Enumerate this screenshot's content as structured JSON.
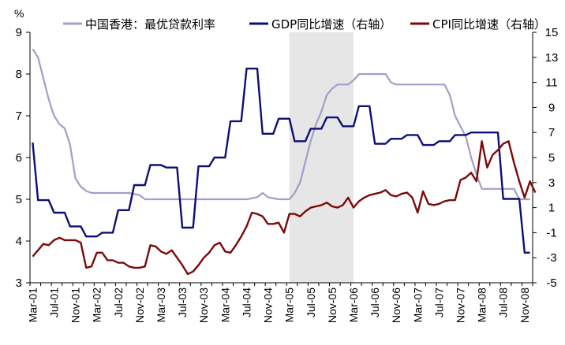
{
  "chart_data": {
    "type": "line",
    "left_unit": "%",
    "left_axis": {
      "min": 3,
      "max": 9,
      "ticks": [
        3,
        4,
        5,
        6,
        7,
        8,
        9
      ]
    },
    "right_axis": {
      "min": -5,
      "max": 15,
      "ticks": [
        -5,
        -3,
        -1,
        1,
        3,
        5,
        7,
        9,
        11,
        13,
        15
      ]
    },
    "x_axis": {
      "start": "Mar-01",
      "end": "Dec-08",
      "tick_labels": [
        "Mar-01",
        "Jul-01",
        "Nov-01",
        "Mar-02",
        "Jul-02",
        "Nov-02",
        "Mar-03",
        "Jul-03",
        "Nov-03",
        "Mar-04",
        "Jul-04",
        "Nov-04",
        "Mar-05",
        "Jul-05",
        "Nov-05",
        "Mar-06",
        "Jul-06",
        "Nov-06",
        "Mar-07",
        "Jul-07",
        "Nov-07",
        "Mar-08",
        "Jul-08",
        "Nov-08"
      ]
    },
    "shaded_region": {
      "from": "Mar-05",
      "to": "Mar-06",
      "color": "#e6e6e6"
    },
    "series": [
      {
        "name": "中国香港：最优贷款利率",
        "axis": "left",
        "color": "#a99bc9",
        "points": [
          [
            "Mar-01",
            8.6
          ],
          [
            "Apr-01",
            8.4
          ],
          [
            "May-01",
            7.9
          ],
          [
            "Jun-01",
            7.4
          ],
          [
            "Jul-01",
            7.0
          ],
          [
            "Aug-01",
            6.8
          ],
          [
            "Sep-01",
            6.7
          ],
          [
            "Oct-01",
            6.3
          ],
          [
            "Nov-01",
            5.5
          ],
          [
            "Dec-01",
            5.3
          ],
          [
            "Jan-02",
            5.2
          ],
          [
            "Feb-02",
            5.15
          ],
          [
            "Mar-02",
            5.15
          ],
          [
            "Jun-02",
            5.15
          ],
          [
            "Sep-02",
            5.15
          ],
          [
            "Nov-02",
            5.1
          ],
          [
            "Dec-02",
            5.0
          ],
          [
            "Mar-03",
            5.0
          ],
          [
            "Jul-03",
            5.0
          ],
          [
            "Nov-03",
            5.0
          ],
          [
            "Mar-04",
            5.0
          ],
          [
            "Jul-04",
            5.0
          ],
          [
            "Sep-04",
            5.05
          ],
          [
            "Oct-04",
            5.15
          ],
          [
            "Nov-04",
            5.05
          ],
          [
            "Jan-05",
            5.0
          ],
          [
            "Mar-05",
            5.0
          ],
          [
            "Apr-05",
            5.15
          ],
          [
            "May-05",
            5.4
          ],
          [
            "Jun-05",
            5.9
          ],
          [
            "Jul-05",
            6.4
          ],
          [
            "Aug-05",
            6.8
          ],
          [
            "Sep-05",
            7.1
          ],
          [
            "Oct-05",
            7.5
          ],
          [
            "Nov-05",
            7.65
          ],
          [
            "Dec-05",
            7.75
          ],
          [
            "Feb-06",
            7.75
          ],
          [
            "Mar-06",
            7.85
          ],
          [
            "Apr-06",
            8.0
          ],
          [
            "Jul-06",
            8.0
          ],
          [
            "Sep-06",
            8.0
          ],
          [
            "Oct-06",
            7.8
          ],
          [
            "Nov-06",
            7.75
          ],
          [
            "Mar-07",
            7.75
          ],
          [
            "Jul-07",
            7.75
          ],
          [
            "Aug-07",
            7.75
          ],
          [
            "Sep-07",
            7.5
          ],
          [
            "Oct-07",
            7.0
          ],
          [
            "Nov-07",
            6.75
          ],
          [
            "Dec-07",
            6.5
          ],
          [
            "Jan-08",
            6.0
          ],
          [
            "Feb-08",
            5.6
          ],
          [
            "Mar-08",
            5.25
          ],
          [
            "Jul-08",
            5.25
          ],
          [
            "Sep-08",
            5.25
          ],
          [
            "Oct-08",
            5.0
          ],
          [
            "Dec-08",
            5.0
          ]
        ]
      },
      {
        "name": "GDP同比增速（右轴）",
        "axis": "right",
        "color": "#0e0e7a",
        "points": [
          [
            "Mar-01",
            6.2
          ],
          [
            "Apr-01",
            1.6
          ],
          [
            "May-01",
            1.6
          ],
          [
            "Jun-01",
            1.6
          ],
          [
            "Jul-01",
            0.6
          ],
          [
            "Aug-01",
            0.6
          ],
          [
            "Sep-01",
            0.6
          ],
          [
            "Oct-01",
            -0.5
          ],
          [
            "Nov-01",
            -0.5
          ],
          [
            "Dec-01",
            -0.5
          ],
          [
            "Jan-02",
            -1.3
          ],
          [
            "Feb-02",
            -1.3
          ],
          [
            "Mar-02",
            -1.3
          ],
          [
            "Apr-02",
            -1.0
          ],
          [
            "May-02",
            -1.0
          ],
          [
            "Jun-02",
            -1.0
          ],
          [
            "Jul-02",
            0.8
          ],
          [
            "Aug-02",
            0.8
          ],
          [
            "Sep-02",
            0.8
          ],
          [
            "Oct-02",
            2.8
          ],
          [
            "Nov-02",
            2.8
          ],
          [
            "Dec-02",
            2.8
          ],
          [
            "Jan-03",
            4.4
          ],
          [
            "Feb-03",
            4.4
          ],
          [
            "Mar-03",
            4.4
          ],
          [
            "Apr-03",
            4.2
          ],
          [
            "May-03",
            4.2
          ],
          [
            "Jun-03",
            4.2
          ],
          [
            "Jul-03",
            -0.6
          ],
          [
            "Aug-03",
            -0.6
          ],
          [
            "Sep-03",
            -0.6
          ],
          [
            "Oct-03",
            4.3
          ],
          [
            "Nov-03",
            4.3
          ],
          [
            "Dec-03",
            4.3
          ],
          [
            "Jan-04",
            5.0
          ],
          [
            "Feb-04",
            5.0
          ],
          [
            "Mar-04",
            5.0
          ],
          [
            "Apr-04",
            7.9
          ],
          [
            "May-04",
            7.9
          ],
          [
            "Jun-04",
            7.9
          ],
          [
            "Jul-04",
            12.1
          ],
          [
            "Aug-04",
            12.1
          ],
          [
            "Sep-04",
            12.1
          ],
          [
            "Oct-04",
            6.9
          ],
          [
            "Nov-04",
            6.9
          ],
          [
            "Dec-04",
            6.9
          ],
          [
            "Jan-05",
            8.1
          ],
          [
            "Feb-05",
            8.1
          ],
          [
            "Mar-05",
            8.1
          ],
          [
            "Apr-05",
            6.3
          ],
          [
            "May-05",
            6.3
          ],
          [
            "Jun-05",
            6.3
          ],
          [
            "Jul-05",
            7.3
          ],
          [
            "Aug-05",
            7.3
          ],
          [
            "Sep-05",
            7.3
          ],
          [
            "Oct-05",
            8.2
          ],
          [
            "Nov-05",
            8.2
          ],
          [
            "Dec-05",
            8.2
          ],
          [
            "Jan-06",
            7.5
          ],
          [
            "Feb-06",
            7.5
          ],
          [
            "Mar-06",
            7.5
          ],
          [
            "Apr-06",
            9.1
          ],
          [
            "May-06",
            9.1
          ],
          [
            "Jun-06",
            9.1
          ],
          [
            "Jul-06",
            6.1
          ],
          [
            "Aug-06",
            6.1
          ],
          [
            "Sep-06",
            6.1
          ],
          [
            "Oct-06",
            6.5
          ],
          [
            "Nov-06",
            6.5
          ],
          [
            "Dec-06",
            6.5
          ],
          [
            "Jan-07",
            6.8
          ],
          [
            "Feb-07",
            6.8
          ],
          [
            "Mar-07",
            6.8
          ],
          [
            "Apr-07",
            6.0
          ],
          [
            "May-07",
            6.0
          ],
          [
            "Jun-07",
            6.0
          ],
          [
            "Jul-07",
            6.3
          ],
          [
            "Aug-07",
            6.3
          ],
          [
            "Sep-07",
            6.3
          ],
          [
            "Oct-07",
            6.8
          ],
          [
            "Nov-07",
            6.8
          ],
          [
            "Dec-07",
            6.8
          ],
          [
            "Jan-08",
            7.0
          ],
          [
            "Feb-08",
            7.0
          ],
          [
            "Mar-08",
            7.0
          ],
          [
            "Apr-08",
            7.0
          ],
          [
            "May-08",
            7.0
          ],
          [
            "Jun-08",
            7.0
          ],
          [
            "Jul-08",
            1.7
          ],
          [
            "Aug-08",
            1.7
          ],
          [
            "Sep-08",
            1.7
          ],
          [
            "Oct-08",
            1.7
          ],
          [
            "Nov-08",
            -2.6
          ],
          [
            "Dec-08",
            -2.6
          ]
        ]
      },
      {
        "name": "CPI同比增速（右轴）",
        "axis": "right",
        "color": "#7a0a0a",
        "points": [
          [
            "Mar-01",
            -2.9
          ],
          [
            "Apr-01",
            -2.4
          ],
          [
            "May-01",
            -1.9
          ],
          [
            "Jun-01",
            -2.0
          ],
          [
            "Jul-01",
            -1.6
          ],
          [
            "Aug-01",
            -1.4
          ],
          [
            "Sep-01",
            -1.6
          ],
          [
            "Oct-01",
            -1.6
          ],
          [
            "Nov-01",
            -1.6
          ],
          [
            "Dec-01",
            -1.8
          ],
          [
            "Jan-02",
            -3.8
          ],
          [
            "Feb-02",
            -3.7
          ],
          [
            "Mar-02",
            -2.6
          ],
          [
            "Apr-02",
            -2.6
          ],
          [
            "May-02",
            -3.2
          ],
          [
            "Jun-02",
            -3.2
          ],
          [
            "Jul-02",
            -3.4
          ],
          [
            "Aug-02",
            -3.4
          ],
          [
            "Sep-02",
            -3.7
          ],
          [
            "Oct-02",
            -3.8
          ],
          [
            "Nov-02",
            -3.8
          ],
          [
            "Dec-02",
            -3.7
          ],
          [
            "Jan-03",
            -2.0
          ],
          [
            "Feb-03",
            -2.1
          ],
          [
            "Mar-03",
            -2.5
          ],
          [
            "Apr-03",
            -2.7
          ],
          [
            "May-03",
            -2.4
          ],
          [
            "Jun-03",
            -3.0
          ],
          [
            "Jul-03",
            -3.6
          ],
          [
            "Aug-03",
            -4.3
          ],
          [
            "Sep-03",
            -4.1
          ],
          [
            "Oct-03",
            -3.6
          ],
          [
            "Nov-03",
            -3.0
          ],
          [
            "Dec-03",
            -2.6
          ],
          [
            "Jan-04",
            -2.0
          ],
          [
            "Feb-04",
            -1.8
          ],
          [
            "Mar-04",
            -2.5
          ],
          [
            "Apr-04",
            -2.6
          ],
          [
            "May-04",
            -2.0
          ],
          [
            "Jun-04",
            -1.3
          ],
          [
            "Jul-04",
            -0.5
          ],
          [
            "Aug-04",
            0.6
          ],
          [
            "Sep-04",
            0.5
          ],
          [
            "Oct-04",
            0.3
          ],
          [
            "Nov-04",
            -0.3
          ],
          [
            "Dec-04",
            -0.3
          ],
          [
            "Jan-05",
            -0.2
          ],
          [
            "Feb-05",
            -1.0
          ],
          [
            "Mar-05",
            0.5
          ],
          [
            "Apr-05",
            0.5
          ],
          [
            "May-05",
            0.3
          ],
          [
            "Jun-05",
            0.7
          ],
          [
            "Jul-05",
            1.0
          ],
          [
            "Aug-05",
            1.1
          ],
          [
            "Sep-05",
            1.2
          ],
          [
            "Oct-05",
            1.4
          ],
          [
            "Nov-05",
            1.1
          ],
          [
            "Dec-05",
            1.0
          ],
          [
            "Jan-06",
            1.2
          ],
          [
            "Feb-06",
            1.8
          ],
          [
            "Mar-06",
            1.0
          ],
          [
            "Apr-06",
            1.5
          ],
          [
            "May-06",
            1.8
          ],
          [
            "Jun-06",
            2.0
          ],
          [
            "Jul-06",
            2.1
          ],
          [
            "Aug-06",
            2.2
          ],
          [
            "Sep-06",
            2.4
          ],
          [
            "Oct-06",
            2.0
          ],
          [
            "Nov-06",
            1.9
          ],
          [
            "Dec-06",
            2.1
          ],
          [
            "Jan-07",
            2.2
          ],
          [
            "Feb-07",
            1.8
          ],
          [
            "Mar-07",
            0.6
          ],
          [
            "Apr-07",
            2.3
          ],
          [
            "May-07",
            1.3
          ],
          [
            "Jun-07",
            1.2
          ],
          [
            "Jul-07",
            1.3
          ],
          [
            "Aug-07",
            1.5
          ],
          [
            "Sep-07",
            1.6
          ],
          [
            "Oct-07",
            1.6
          ],
          [
            "Nov-07",
            3.2
          ],
          [
            "Dec-07",
            3.4
          ],
          [
            "Jan-08",
            3.8
          ],
          [
            "Feb-08",
            3.1
          ],
          [
            "Mar-08",
            6.3
          ],
          [
            "Apr-08",
            4.2
          ],
          [
            "May-08",
            5.2
          ],
          [
            "Jun-08",
            5.6
          ],
          [
            "Jul-08",
            6.1
          ],
          [
            "Aug-08",
            6.3
          ],
          [
            "Sep-08",
            4.6
          ],
          [
            "Oct-08",
            3.1
          ],
          [
            "Nov-08",
            1.8
          ],
          [
            "Dec-08",
            3.1
          ],
          [
            "Jan-09",
            2.2
          ]
        ]
      }
    ],
    "legend_position": "top"
  }
}
